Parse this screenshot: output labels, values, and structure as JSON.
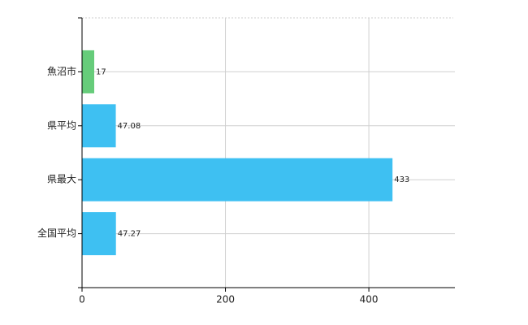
{
  "chart_data": {
    "type": "hbar",
    "categories": [
      "魚沼市",
      "県平均",
      "県最大",
      "全国平均"
    ],
    "values": [
      17,
      47.08,
      433,
      47.27
    ],
    "colors": [
      "#66cc7a",
      "#3ec0f2",
      "#3ec0f2",
      "#3ec0f2"
    ],
    "xlim": [
      0,
      520
    ],
    "xticks": [
      0,
      200,
      400
    ],
    "grid": true
  }
}
